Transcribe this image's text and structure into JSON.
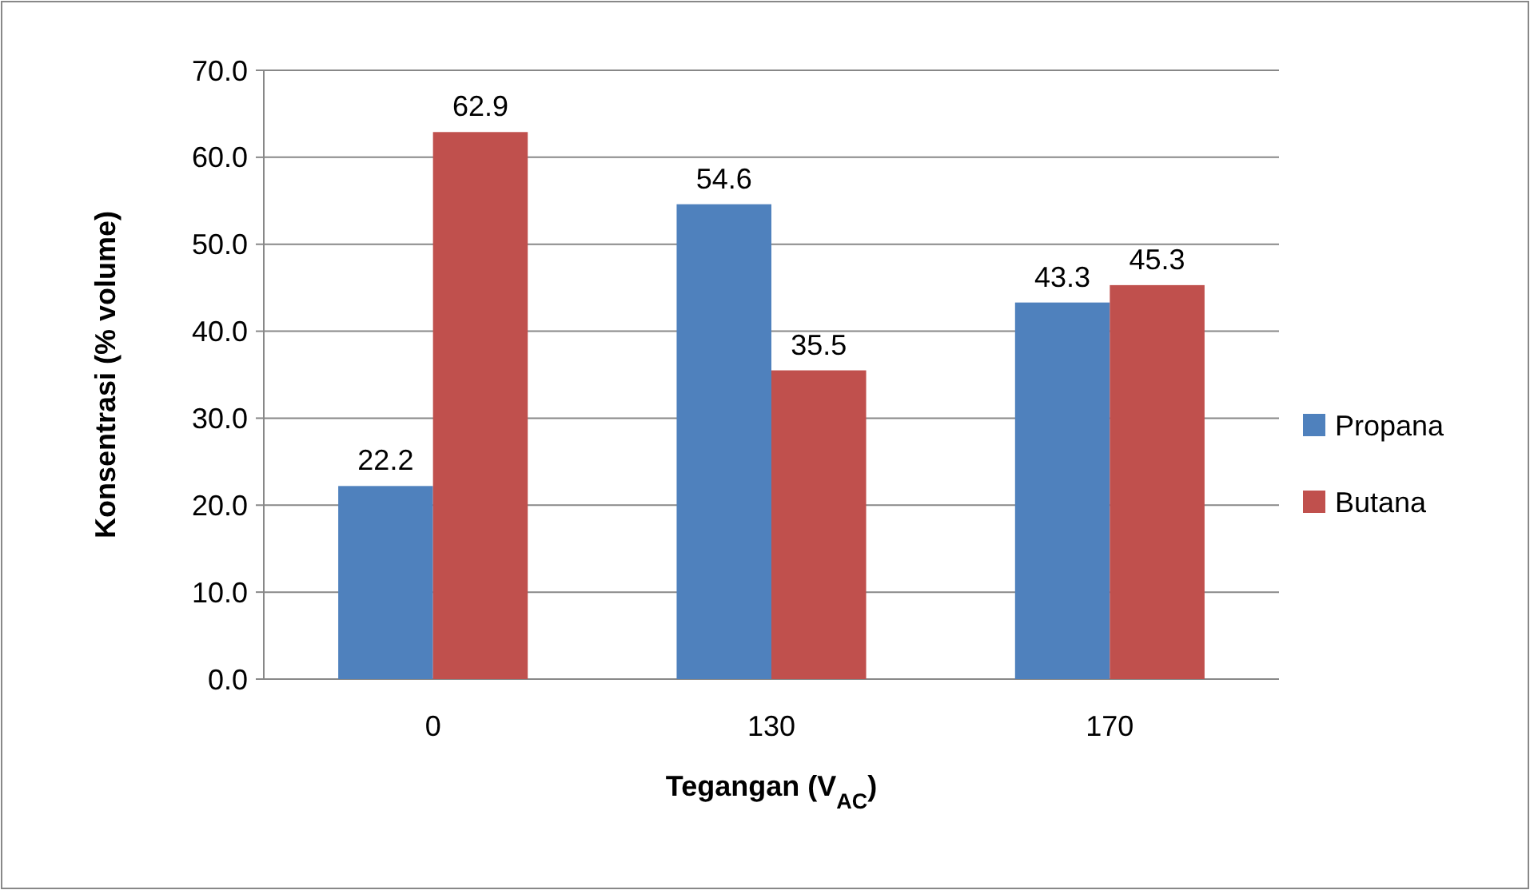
{
  "chart_data": {
    "type": "bar",
    "xlabel": "Tegangan (V$_{AC}$)",
    "ylabel": "Konsentrasi (% volume)",
    "categories": [
      "0",
      "130",
      "170"
    ],
    "series": [
      {
        "name": "Propana",
        "color": "#4f81bd",
        "values": [
          22.2,
          54.6,
          43.3
        ]
      },
      {
        "name": "Butana",
        "color": "#c0504d",
        "values": [
          62.9,
          35.5,
          45.3
        ]
      }
    ],
    "ylim": [
      0,
      70
    ],
    "yticks": [
      {
        "value": 0,
        "label": "0.0"
      },
      {
        "value": 10,
        "label": "10.0"
      },
      {
        "value": 20,
        "label": "20.0"
      },
      {
        "value": 30,
        "label": "30.0"
      },
      {
        "value": 40,
        "label": "40.0"
      },
      {
        "value": 50,
        "label": "50.0"
      },
      {
        "value": 60,
        "label": "60.0"
      },
      {
        "value": 70,
        "label": "70.0"
      }
    ],
    "grid": "y",
    "legend": "right",
    "data_labels": true
  }
}
